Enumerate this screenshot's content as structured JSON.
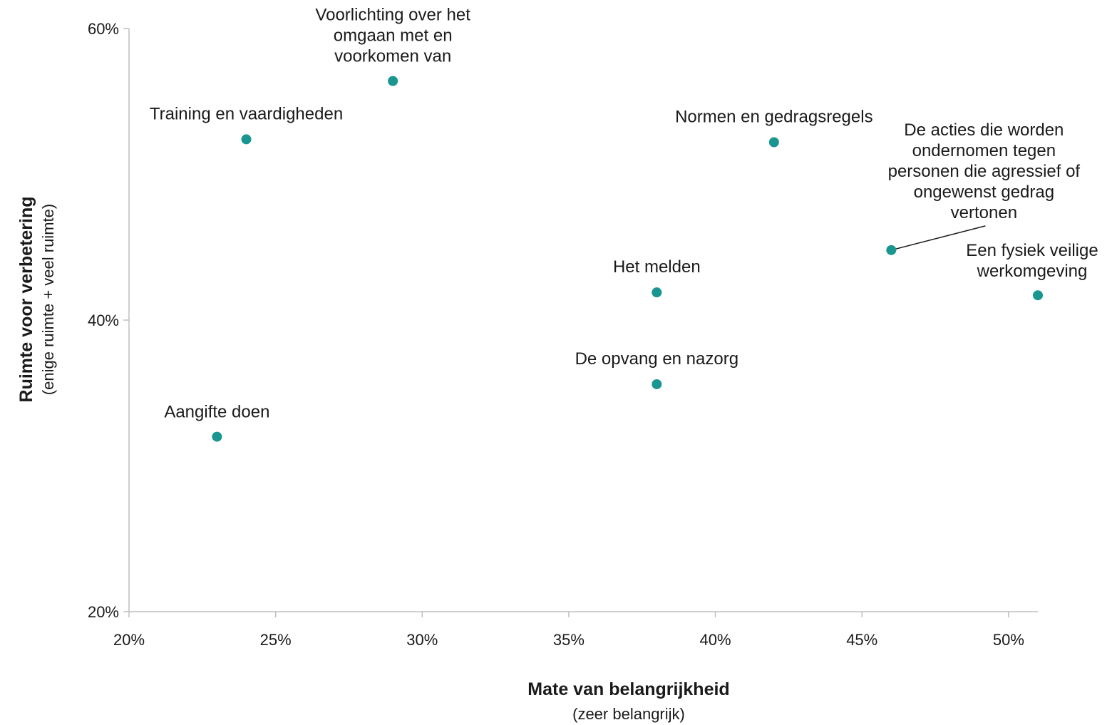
{
  "chart_data": {
    "type": "scatter",
    "xlabel": "Mate van belangrijkheid",
    "xlabel_sub": "(zeer belangrijk)",
    "ylabel": "Ruimte voor verbetering",
    "ylabel_sub": "(enige ruimte + veel ruimte)",
    "xlim": [
      20,
      51
    ],
    "ylim": [
      20,
      60
    ],
    "x_ticks": [
      20,
      25,
      30,
      35,
      40,
      45,
      50
    ],
    "x_tick_labels": [
      "20%",
      "25%",
      "30%",
      "35%",
      "40%",
      "45%",
      "50%"
    ],
    "y_ticks": [
      20,
      40,
      60
    ],
    "y_tick_labels": [
      "20%",
      "40%",
      "60%"
    ],
    "grid": false,
    "marker_color": "#1a9690",
    "points": [
      {
        "label": "Training en vaardigheden",
        "x": 24,
        "y": 52.4
      },
      {
        "label": "Voorlichting over het omgaan met en voorkomen van",
        "x": 29,
        "y": 56.4
      },
      {
        "label": "Normen en gedragsregels",
        "x": 42,
        "y": 52.2
      },
      {
        "label": "De acties die worden ondernomen tegen personen die agressief of ongewenst gedrag vertonen",
        "x": 46,
        "y": 44.8
      },
      {
        "label": "Het melden",
        "x": 38,
        "y": 41.9
      },
      {
        "label": "Een fysiek veilige werkomgeving",
        "x": 51,
        "y": 41.7
      },
      {
        "label": "De opvang en nazorg",
        "x": 38,
        "y": 35.6
      },
      {
        "label": "Aangifte doen",
        "x": 23,
        "y": 32.0
      }
    ]
  }
}
